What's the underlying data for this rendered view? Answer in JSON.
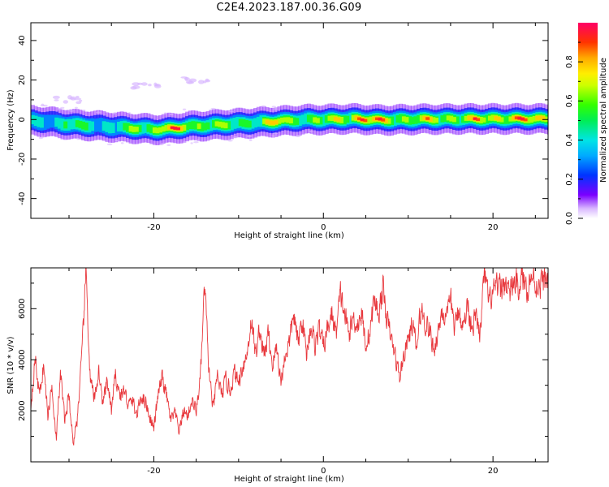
{
  "title": "C2E4.2023.187.00.36.G09",
  "chart_data": [
    {
      "type": "heatmap",
      "xlabel": "Height of straight line (km)",
      "ylabel": "Frequency (Hz)",
      "xlim": [
        -34.5,
        26.5
      ],
      "ylim": [
        -50,
        49
      ],
      "xticks": [
        -20,
        0,
        20
      ],
      "yticks": [
        -40,
        -20,
        0,
        20,
        40
      ],
      "colorbar": {
        "label": "Normalized spectral amplitude",
        "ticks": [
          "0.0",
          "0.2",
          "0.4",
          "0.6",
          "0.8"
        ],
        "range": [
          0,
          1
        ]
      },
      "ridge": {
        "x": [
          -34.5,
          -32,
          -30,
          -28,
          -26,
          -24,
          -22,
          -20,
          -18,
          -16,
          -14,
          -12,
          -10,
          -8,
          -6,
          -4,
          -2,
          0,
          2,
          4,
          6,
          8,
          10,
          12,
          14,
          16,
          18,
          20,
          22,
          24,
          26.5
        ],
        "y": [
          -0.5,
          -1.5,
          -2.5,
          -3,
          -3.5,
          -4,
          -4.5,
          -5,
          -4.5,
          -3.5,
          -3,
          -2.5,
          -2,
          -1.5,
          -1,
          -0.5,
          0,
          0,
          0.3,
          0.3,
          -0.2,
          -0.2,
          0,
          0.2,
          0.2,
          0.3,
          0.3,
          0.3,
          0.3,
          0.3,
          0.3
        ],
        "amplitude": [
          0.45,
          0.5,
          0.55,
          0.55,
          0.5,
          0.5,
          0.75,
          0.8,
          0.9,
          0.75,
          0.8,
          0.6,
          0.6,
          0.65,
          0.8,
          0.7,
          0.7,
          0.6,
          0.9,
          0.95,
          0.85,
          0.9,
          0.7,
          0.75,
          0.8,
          0.75,
          0.8,
          0.85,
          0.9,
          0.85,
          0.85
        ]
      },
      "blobs": [
        {
          "x": -21,
          "y": 17,
          "amplitude": 0.1
        },
        {
          "x": -15,
          "y": 20,
          "amplitude": 0.08
        },
        {
          "x": -30,
          "y": 10,
          "amplitude": 0.06
        }
      ]
    },
    {
      "type": "line",
      "color": "#e8383d",
      "xlabel": "Height of straight line (km)",
      "ylabel": "SNR (10 * v/v)",
      "xlim": [
        -34.5,
        26.5
      ],
      "ylim": [
        0,
        7600
      ],
      "xticks": [
        -20,
        0,
        20
      ],
      "yticks": [
        2000,
        4000,
        6000
      ],
      "anchors": {
        "x": [
          -34.5,
          -34,
          -33.5,
          -33,
          -32.5,
          -32,
          -31.5,
          -31,
          -30.5,
          -30,
          -29.5,
          -29,
          -28.5,
          -28,
          -27.5,
          -27,
          -26.5,
          -26,
          -25.5,
          -25,
          -24.5,
          -24,
          -23.5,
          -23,
          -22.5,
          -22,
          -21.5,
          -21,
          -20.5,
          -20,
          -19.5,
          -19,
          -18.5,
          -18,
          -17.5,
          -17,
          -16.5,
          -16,
          -15.5,
          -15,
          -14.5,
          -14,
          -13.5,
          -13,
          -12.5,
          -12,
          -11.5,
          -11,
          -10.5,
          -10,
          -9.5,
          -9,
          -8.5,
          -8,
          -7.5,
          -7,
          -6.5,
          -6,
          -5.5,
          -5,
          -4.5,
          -4,
          -3.5,
          -3,
          -2.5,
          -2,
          -1.5,
          -1,
          -0.5,
          0,
          0.5,
          1,
          1.5,
          2,
          2.5,
          3,
          3.5,
          4,
          4.5,
          5,
          5.5,
          6,
          6.5,
          7,
          7.5,
          8,
          8.5,
          9,
          9.5,
          10,
          10.5,
          11,
          11.5,
          12,
          12.5,
          13,
          13.5,
          14,
          14.5,
          15,
          15.5,
          16,
          16.5,
          17,
          17.5,
          18,
          18.5,
          19,
          19.5,
          20,
          20.5,
          21,
          21.5,
          22,
          22.5,
          23,
          23.5,
          24,
          24.5,
          25,
          25.5,
          26,
          26.5
        ],
        "y": [
          2200,
          4100,
          2600,
          3800,
          1800,
          3000,
          900,
          3500,
          1600,
          2600,
          700,
          1800,
          4000,
          7500,
          3200,
          2400,
          3600,
          2200,
          3200,
          2000,
          3400,
          2600,
          2800,
          2200,
          2400,
          1800,
          2600,
          2400,
          1800,
          1300,
          2600,
          3300,
          2600,
          1600,
          1900,
          1200,
          2000,
          1800,
          2400,
          2000,
          3300,
          6900,
          3600,
          2000,
          3400,
          2600,
          3200,
          2800,
          3500,
          3100,
          3800,
          4200,
          5600,
          4200,
          5200,
          4100,
          5000,
          3800,
          4500,
          3100,
          4200,
          4700,
          5800,
          4600,
          5600,
          4200,
          5400,
          4600,
          5200,
          4500,
          5200,
          5800,
          5000,
          6600,
          5800,
          5000,
          5600,
          5400,
          5800,
          4600,
          5100,
          6400,
          5800,
          6800,
          5600,
          4800,
          4100,
          3300,
          4200,
          4800,
          5400,
          4400,
          6000,
          5500,
          5200,
          4400,
          5000,
          6000,
          5400,
          6400,
          5200,
          6000,
          5200,
          6200,
          5400,
          5600,
          5000,
          7400,
          6200,
          6600,
          6800,
          6800,
          7000,
          6600,
          7100,
          6900,
          7200,
          6800,
          7300,
          7000,
          6900,
          7100,
          7200
        ]
      }
    }
  ]
}
